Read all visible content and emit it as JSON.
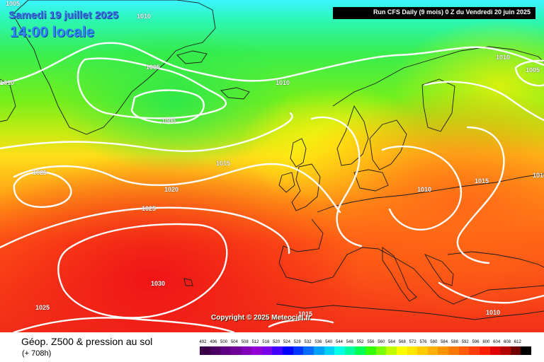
{
  "header": {
    "date": "Samedi 19 juillet 2025",
    "time": "14:00 locale",
    "run": "Run CFS Daily (9 mois) 0 Z du Vendredi 20 juin 2025"
  },
  "isobars": [
    "1005",
    "1010",
    "1010",
    "1005",
    "1010",
    "1000",
    "1010",
    "1010",
    "1005",
    "1025",
    "1015",
    "1010",
    "1015",
    "1020",
    "1025",
    "1030",
    "1025",
    "1015",
    "1010"
  ],
  "copyright": "Copyright © 2025 Meteociel.fr",
  "legend": {
    "title": "Géop. Z500 & pression au sol",
    "leadtime": "(+ 708h)",
    "scale": [
      {
        "value": "492",
        "color": "#3a0046"
      },
      {
        "value": "496",
        "color": "#4b0063"
      },
      {
        "value": "500",
        "color": "#5e0082"
      },
      {
        "value": "504",
        "color": "#6f0099"
      },
      {
        "value": "508",
        "color": "#8400b8"
      },
      {
        "value": "512",
        "color": "#9400d3"
      },
      {
        "value": "516",
        "color": "#7a00e6"
      },
      {
        "value": "520",
        "color": "#4400ff"
      },
      {
        "value": "524",
        "color": "#0000ff"
      },
      {
        "value": "528",
        "color": "#0035ff"
      },
      {
        "value": "532",
        "color": "#006cff"
      },
      {
        "value": "536",
        "color": "#00a0ff"
      },
      {
        "value": "540",
        "color": "#00d0ff"
      },
      {
        "value": "544",
        "color": "#00ffe6"
      },
      {
        "value": "548",
        "color": "#00ffa0"
      },
      {
        "value": "552",
        "color": "#00ff55"
      },
      {
        "value": "556",
        "color": "#33ff00"
      },
      {
        "value": "560",
        "color": "#7aff00"
      },
      {
        "value": "564",
        "color": "#c0ff00"
      },
      {
        "value": "568",
        "color": "#ffff00"
      },
      {
        "value": "572",
        "color": "#ffe600"
      },
      {
        "value": "576",
        "color": "#ffcc00"
      },
      {
        "value": "580",
        "color": "#ffb000"
      },
      {
        "value": "584",
        "color": "#ff9400"
      },
      {
        "value": "588",
        "color": "#ff7800"
      },
      {
        "value": "592",
        "color": "#ff5a00"
      },
      {
        "value": "596",
        "color": "#ff3c00"
      },
      {
        "value": "600",
        "color": "#ff1e00"
      },
      {
        "value": "604",
        "color": "#e00000"
      },
      {
        "value": "608",
        "color": "#b40000"
      },
      {
        "value": "612",
        "color": "#6e0000"
      },
      {
        "value": "",
        "color": "#000000"
      }
    ]
  }
}
